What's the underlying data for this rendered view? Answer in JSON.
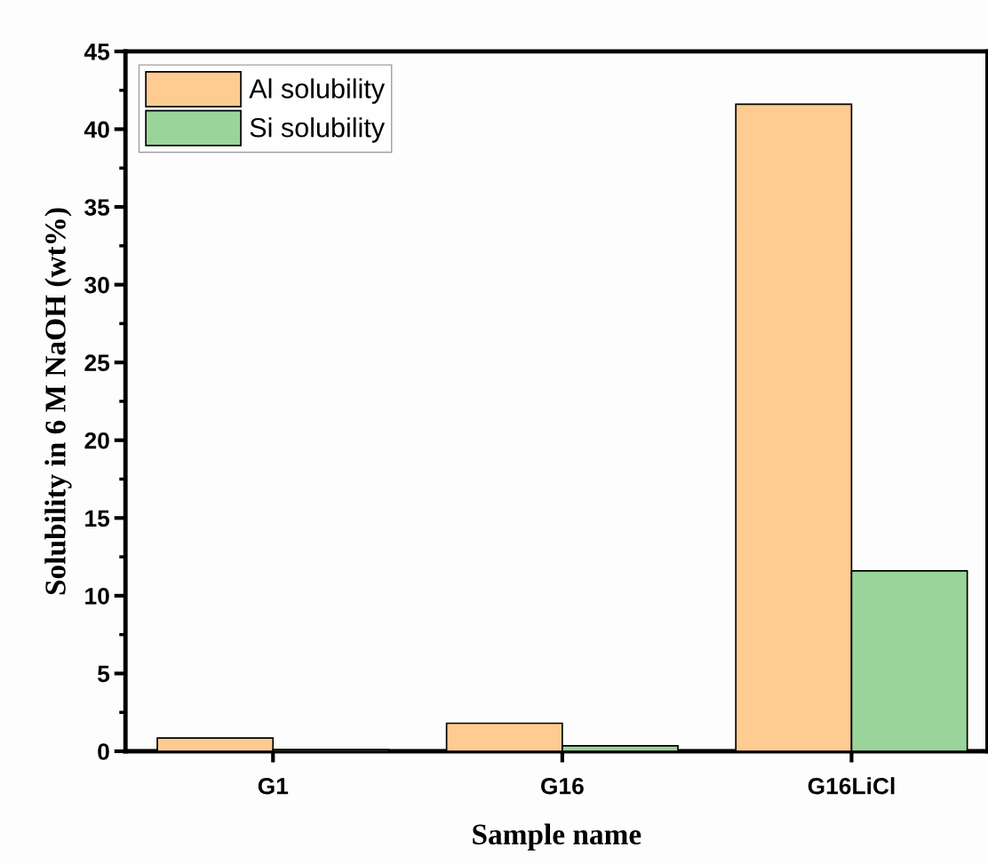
{
  "chart_data": {
    "type": "bar",
    "xlabel": "Sample name",
    "ylabel": "Solubility in 6 M NaOH (wt%)",
    "categories": [
      "G1",
      "G16",
      "G16LiCl"
    ],
    "series": [
      {
        "name": "Al solubility",
        "color": "#fecb91",
        "values": [
          0.85,
          1.8,
          41.6
        ]
      },
      {
        "name": "Si solubility",
        "color": "#9ad49a",
        "values": [
          0.1,
          0.35,
          11.6
        ]
      }
    ],
    "ylim": [
      0,
      45
    ],
    "yticks": [
      0,
      5,
      10,
      15,
      20,
      25,
      30,
      35,
      40,
      45
    ],
    "grid": false,
    "legend": "top left"
  }
}
